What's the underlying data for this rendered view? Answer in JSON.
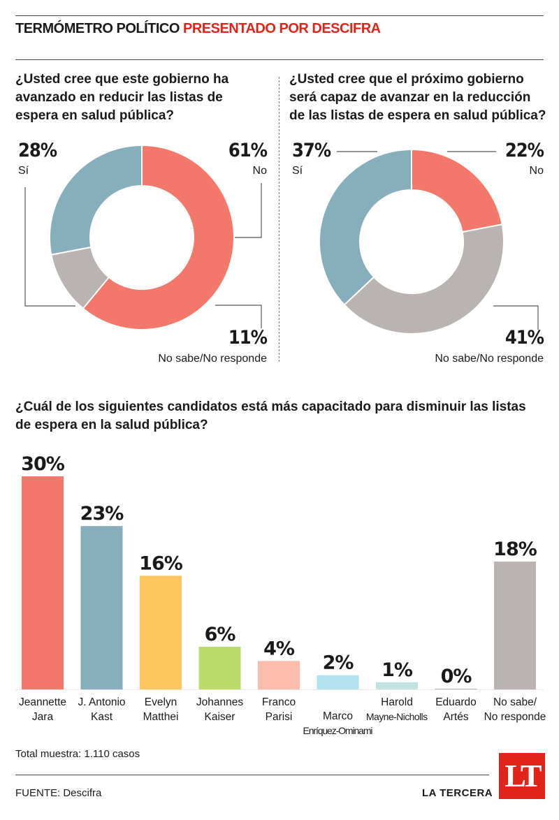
{
  "header": {
    "title": "TERMÓMETRO POLÍTICO",
    "sponsor": "PRESENTADO POR DESCIFRA"
  },
  "questions": {
    "q1": "¿Usted cree que este gobierno ha avanzado en reducir las listas de espera en salud pública?",
    "q2": "¿Usted cree que el próximo gobierno será capaz de avanzar en la reducción de las listas de espera en salud pública?",
    "q3": "¿Cuál de los siguientes candidatos está más capacitado para disminuir las listas de espera en la salud pública?"
  },
  "colors": {
    "si": "#87aebb",
    "no": "#f4776c",
    "nsnr": "#b9b4b2",
    "yellow": "#fec65e",
    "green": "#bbdc6b",
    "pink": "#fdbcae",
    "lightblue": "#b3e2f1",
    "mint": "#c2e3df"
  },
  "chart_data": [
    {
      "type": "pie",
      "title": "¿Usted cree que este gobierno ha avanzado en reducir las listas de espera en salud pública?",
      "slices": [
        {
          "label": "No",
          "value": 61,
          "display": "61%",
          "color": "#f4776c"
        },
        {
          "label": "No sabe/No responde",
          "value": 11,
          "display": "11%",
          "color": "#b9b4b2"
        },
        {
          "label": "Sí",
          "value": 28,
          "display": "28%",
          "color": "#87aebb"
        }
      ]
    },
    {
      "type": "pie",
      "title": "¿Usted cree que el próximo gobierno será capaz de avanzar en la reducción de las listas de espera en salud pública?",
      "slices": [
        {
          "label": "No",
          "value": 22,
          "display": "22%",
          "color": "#f4776c"
        },
        {
          "label": "No sabe/No responde",
          "value": 41,
          "display": "41%",
          "color": "#b9b4b2"
        },
        {
          "label": "Sí",
          "value": 37,
          "display": "37%",
          "color": "#87aebb"
        }
      ]
    },
    {
      "type": "bar",
      "title": "¿Cuál de los siguientes candidatos está más capacitado para disminuir las listas de espera en la salud pública?",
      "categories": [
        "Jeannette Jara",
        "J. Antonio Kast",
        "Evelyn Matthei",
        "Johannes Kaiser",
        "Franco Parisi",
        "Marco Enríquez-Ominami",
        "Harold Mayne-Nicholls",
        "Eduardo Artés",
        "No sabe/ No responde"
      ],
      "category_lines": [
        [
          "Jeannette",
          "Jara"
        ],
        [
          "J. Antonio",
          "Kast"
        ],
        [
          "Evelyn",
          "Matthei"
        ],
        [
          "Johannes",
          "Kaiser"
        ],
        [
          "Franco",
          "Parisi"
        ],
        [
          "Marco",
          "Enríquez-Ominami"
        ],
        [
          "Harold",
          "Mayne-Nicholls"
        ],
        [
          "Eduardo",
          "Artés"
        ],
        [
          "No sabe/",
          "No responde"
        ]
      ],
      "values": [
        30,
        23,
        16,
        6,
        4,
        2,
        1,
        0,
        18
      ],
      "labels": [
        "30%",
        "23%",
        "16%",
        "6%",
        "4%",
        "2%",
        "1%",
        "0%",
        "18%"
      ],
      "colors": [
        "#f4776c",
        "#87aebb",
        "#fec65e",
        "#bbdc6b",
        "#fdbcae",
        "#b3e2f1",
        "#c2e3df",
        "#b9b4b2",
        "#b9b4b2"
      ]
    }
  ],
  "footer": {
    "sample": "Total muestra: 1.110 casos",
    "source": "FUENTE: Descifra",
    "brand": "LA TERCERA",
    "logo": "LT"
  }
}
